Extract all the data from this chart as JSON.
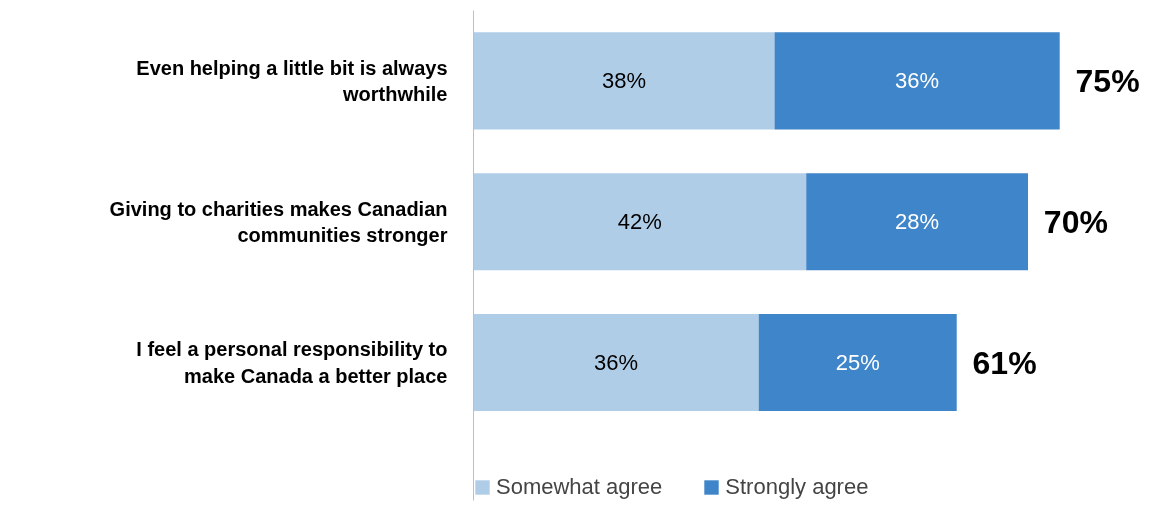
{
  "chart_data": {
    "type": "bar",
    "orientation": "horizontal",
    "stacked": true,
    "categories": [
      "Even helping a little bit is always worthwhile",
      "Giving to charities makes Canadian communities stronger",
      "I feel a personal responsibility to make Canada a better place"
    ],
    "series": [
      {
        "name": "Somewhat agree",
        "color": "#b0cde8",
        "values": [
          38,
          42,
          36
        ],
        "value_labels": [
          "38%",
          "42%",
          "36%"
        ]
      },
      {
        "name": "Strongly agree",
        "color": "#3f85c9",
        "values": [
          36,
          28,
          25
        ],
        "value_labels": [
          "36%",
          "28%",
          "25%"
        ]
      }
    ],
    "totals": [
      "75%",
      "70%",
      "61%"
    ],
    "tick_labels": "y",
    "legend": "bottom"
  }
}
